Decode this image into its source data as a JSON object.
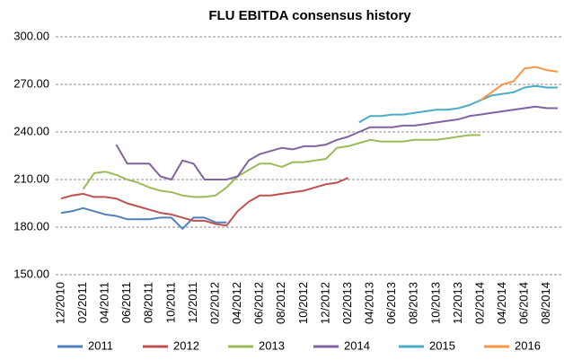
{
  "chart_data": {
    "type": "line",
    "title": "FLU EBITDA consensus history",
    "categories": [
      "12/2010",
      null,
      "02/2011",
      null,
      "04/2011",
      null,
      "06/2011",
      null,
      "08/2011",
      null,
      "10/2011",
      null,
      "12/2011",
      null,
      "02/2012",
      null,
      "04/2012",
      null,
      "06/2012",
      null,
      "08/2012",
      null,
      "10/2012",
      null,
      "12/2012",
      null,
      "02/2013",
      null,
      "04/2013",
      null,
      "06/2013",
      null,
      "08/2013",
      null,
      "10/2013",
      null,
      "12/2013",
      null,
      "02/2014",
      null,
      "04/2014",
      null,
      "06/2014",
      null,
      "08/2014",
      null
    ],
    "series": [
      {
        "name": "2011",
        "color": "#4f81bd",
        "values": [
          189,
          190,
          192,
          190,
          188,
          187,
          185,
          185,
          185,
          186,
          186,
          179,
          186,
          186,
          183,
          183,
          null,
          null,
          null,
          null,
          null,
          null,
          null,
          null,
          null,
          null,
          null,
          null,
          null,
          null,
          null,
          null,
          null,
          null,
          null,
          null,
          null,
          null,
          null,
          null,
          null,
          null,
          null,
          null,
          null,
          null
        ]
      },
      {
        "name": "2012",
        "color": "#c0504d",
        "values": [
          198,
          200,
          201,
          199,
          199,
          198,
          195,
          193,
          191,
          189,
          188,
          186,
          184,
          184,
          182,
          181,
          190,
          196,
          200,
          200,
          201,
          202,
          203,
          205,
          207,
          208,
          211,
          null,
          null,
          null,
          null,
          null,
          null,
          null,
          null,
          null,
          null,
          null,
          null,
          null,
          null,
          null,
          null,
          null,
          null,
          null
        ]
      },
      {
        "name": "2013",
        "color": "#9bbb59",
        "values": [
          null,
          null,
          204,
          214,
          215,
          213,
          210,
          208,
          205,
          203,
          202,
          200,
          199,
          199,
          200,
          205,
          212,
          216,
          220,
          220,
          218,
          221,
          221,
          222,
          223,
          230,
          231,
          233,
          235,
          234,
          234,
          234,
          235,
          235,
          235,
          236,
          237,
          238,
          238,
          null,
          null,
          null,
          null,
          null,
          null,
          null
        ]
      },
      {
        "name": "2014",
        "color": "#8064a2",
        "values": [
          null,
          null,
          null,
          null,
          null,
          232,
          220,
          220,
          220,
          212,
          210,
          222,
          220,
          210,
          210,
          210,
          212,
          222,
          226,
          228,
          230,
          229,
          231,
          231,
          232,
          235,
          237,
          240,
          243,
          243,
          243,
          244,
          244,
          245,
          246,
          247,
          248,
          250,
          251,
          252,
          253,
          254,
          255,
          256,
          255,
          255
        ]
      },
      {
        "name": "2015",
        "color": "#4bacc6",
        "values": [
          null,
          null,
          null,
          null,
          null,
          null,
          null,
          null,
          null,
          null,
          null,
          null,
          null,
          null,
          null,
          null,
          null,
          null,
          null,
          null,
          null,
          null,
          null,
          null,
          null,
          null,
          null,
          246,
          250,
          250,
          251,
          251,
          252,
          253,
          254,
          254,
          255,
          257,
          260,
          263,
          264,
          265,
          268,
          269,
          268,
          268
        ]
      },
      {
        "name": "2016",
        "color": "#f79646",
        "values": [
          null,
          null,
          null,
          null,
          null,
          null,
          null,
          null,
          null,
          null,
          null,
          null,
          null,
          null,
          null,
          null,
          null,
          null,
          null,
          null,
          null,
          null,
          null,
          null,
          null,
          null,
          null,
          null,
          null,
          null,
          null,
          null,
          null,
          null,
          null,
          null,
          null,
          null,
          260,
          265,
          270,
          272,
          280,
          281,
          279,
          278
        ]
      }
    ],
    "ylim": [
      150,
      300
    ],
    "yticks": [
      {
        "value": 150,
        "label": "150.00"
      },
      {
        "value": 180,
        "label": "180.00"
      },
      {
        "value": 210,
        "label": "210.00"
      },
      {
        "value": 240,
        "label": "240.00"
      },
      {
        "value": 270,
        "label": "270.00"
      },
      {
        "value": 300,
        "label": "300.00"
      }
    ],
    "grid": true,
    "legend": "bottom"
  }
}
